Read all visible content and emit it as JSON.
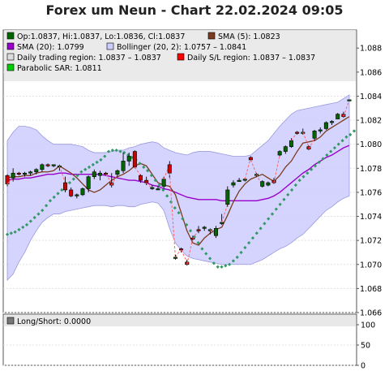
{
  "chart_title": "Forex um Neun - Chart 22.02.2024 09:05",
  "legend": {
    "ohlc": "Op:1.0837, Hi:1.0837, Lo:1.0836, Cl:1.0837",
    "sma5": "SMA (5): 1.0823",
    "sma20": "SMA (20): 1.0799",
    "bollinger": "Bollinger (20, 2): 1.0757 – 1.0841",
    "daily_region": "Daily trading region: 1.0837 – 1.0837",
    "sl_region": "Daily S/L region: 1.0837 – 1.0837",
    "psar": "Parabolic SAR: 1.0811"
  },
  "sub_legend": {
    "longshort": "Long/Short: 0.0000"
  },
  "colors": {
    "band_fill": "#ccccff",
    "band_edge": "#9999dd",
    "sma5": "#7a3b1e",
    "sma20": "#9900cc",
    "psar": "#339966",
    "up": "#006600",
    "down": "#cc0000",
    "legend_bg": "#e8e8e8",
    "daily_region_swatch": "#dddddd",
    "sl_swatch": "#ff0000",
    "psar_swatch": "#00cc00"
  },
  "chart_data": [
    {
      "type": "candlestick",
      "title": "Forex um Neun - Chart 22.02.2024 09:05",
      "ylim": [
        1.066,
        1.0895
      ],
      "yticks": [
        "1.066",
        "1.068",
        "1.070",
        "1.072",
        "1.074",
        "1.076",
        "1.078",
        "1.080",
        "1.082",
        "1.084",
        "1.086",
        "1.088"
      ],
      "candles": [
        {
          "o": 1.0774,
          "h": 1.0775,
          "l": 1.0765,
          "c": 1.0767
        },
        {
          "o": 1.0772,
          "h": 1.078,
          "l": 1.0769,
          "c": 1.0776
        },
        {
          "o": 1.0776,
          "h": 1.0777,
          "l": 1.0774,
          "c": 1.0775
        },
        {
          "o": 1.0775,
          "h": 1.0777,
          "l": 1.0773,
          "c": 1.0776
        },
        {
          "o": 1.0776,
          "h": 1.0778,
          "l": 1.0774,
          "c": 1.0777
        },
        {
          "o": 1.0777,
          "h": 1.078,
          "l": 1.0775,
          "c": 1.0779
        },
        {
          "o": 1.0779,
          "h": 1.0784,
          "l": 1.0777,
          "c": 1.0783
        },
        {
          "o": 1.0783,
          "h": 1.0784,
          "l": 1.0781,
          "c": 1.0782
        },
        {
          "o": 1.0782,
          "h": 1.0783,
          "l": 1.0781,
          "c": 1.0783
        },
        {
          "o": 1.0781,
          "h": 1.0783,
          "l": 1.0778,
          "c": 1.0782
        },
        {
          "o": 1.0768,
          "h": 1.0773,
          "l": 1.076,
          "c": 1.0762
        },
        {
          "o": 1.0762,
          "h": 1.0764,
          "l": 1.0756,
          "c": 1.0757
        },
        {
          "o": 1.0757,
          "h": 1.0759,
          "l": 1.0755,
          "c": 1.0758
        },
        {
          "o": 1.0758,
          "h": 1.0764,
          "l": 1.0757,
          "c": 1.0763
        },
        {
          "o": 1.0763,
          "h": 1.0774,
          "l": 1.076,
          "c": 1.0773
        },
        {
          "o": 1.0773,
          "h": 1.0779,
          "l": 1.0771,
          "c": 1.0777
        },
        {
          "o": 1.0774,
          "h": 1.0778,
          "l": 1.077,
          "c": 1.0776
        },
        {
          "o": 1.0776,
          "h": 1.0777,
          "l": 1.0774,
          "c": 1.0775
        },
        {
          "o": 1.0768,
          "h": 1.0776,
          "l": 1.0764,
          "c": 1.0766
        },
        {
          "o": 1.0775,
          "h": 1.0779,
          "l": 1.0773,
          "c": 1.0778
        },
        {
          "o": 1.0778,
          "h": 1.0793,
          "l": 1.0776,
          "c": 1.0786
        },
        {
          "o": 1.0786,
          "h": 1.0793,
          "l": 1.0782,
          "c": 1.079
        },
        {
          "o": 1.0794,
          "h": 1.0795,
          "l": 1.078,
          "c": 1.0781
        },
        {
          "o": 1.0774,
          "h": 1.0775,
          "l": 1.0768,
          "c": 1.077
        },
        {
          "o": 1.077,
          "h": 1.0773,
          "l": 1.0766,
          "c": 1.0768
        },
        {
          "o": 1.0763,
          "h": 1.0766,
          "l": 1.0762,
          "c": 1.0764
        },
        {
          "o": 1.0763,
          "h": 1.0765,
          "l": 1.0762,
          "c": 1.0763
        },
        {
          "o": 1.0765,
          "h": 1.0773,
          "l": 1.0763,
          "c": 1.0771
        },
        {
          "o": 1.0783,
          "h": 1.0786,
          "l": 1.0772,
          "c": 1.0776
        },
        {
          "o": 1.0706,
          "h": 1.0708,
          "l": 1.0704,
          "c": 1.0706
        },
        {
          "o": 1.0713,
          "h": 1.0714,
          "l": 1.071,
          "c": 1.0712
        },
        {
          "o": 1.0702,
          "h": 1.0704,
          "l": 1.0699,
          "c": 1.07
        },
        {
          "o": 1.0722,
          "h": 1.0724,
          "l": 1.072,
          "c": 1.0721
        },
        {
          "o": 1.0729,
          "h": 1.0732,
          "l": 1.0726,
          "c": 1.0728
        },
        {
          "o": 1.073,
          "h": 1.0732,
          "l": 1.0728,
          "c": 1.0731
        },
        {
          "o": 1.0728,
          "h": 1.073,
          "l": 1.0725,
          "c": 1.0729
        },
        {
          "o": 1.0724,
          "h": 1.0732,
          "l": 1.0722,
          "c": 1.073
        },
        {
          "o": 1.0734,
          "h": 1.0742,
          "l": 1.0733,
          "c": 1.0735
        },
        {
          "o": 1.075,
          "h": 1.0765,
          "l": 1.0748,
          "c": 1.0762
        },
        {
          "o": 1.0766,
          "h": 1.077,
          "l": 1.0764,
          "c": 1.0768
        },
        {
          "o": 1.077,
          "h": 1.0772,
          "l": 1.0769,
          "c": 1.077
        },
        {
          "o": 1.0771,
          "h": 1.0772,
          "l": 1.0769,
          "c": 1.0771
        },
        {
          "o": 1.0789,
          "h": 1.079,
          "l": 1.0786,
          "c": 1.0787
        },
        {
          "o": 1.0775,
          "h": 1.0776,
          "l": 1.0773,
          "c": 1.0775
        },
        {
          "o": 1.0765,
          "h": 1.077,
          "l": 1.0764,
          "c": 1.0769
        },
        {
          "o": 1.0766,
          "h": 1.0769,
          "l": 1.0765,
          "c": 1.0768
        },
        {
          "o": 1.077,
          "h": 1.0772,
          "l": 1.0767,
          "c": 1.0768
        },
        {
          "o": 1.0791,
          "h": 1.0795,
          "l": 1.079,
          "c": 1.0794
        },
        {
          "o": 1.0794,
          "h": 1.0799,
          "l": 1.0792,
          "c": 1.0798
        },
        {
          "o": 1.0798,
          "h": 1.0805,
          "l": 1.0797,
          "c": 1.0803
        },
        {
          "o": 1.081,
          "h": 1.0811,
          "l": 1.0808,
          "c": 1.0809
        },
        {
          "o": 1.081,
          "h": 1.0813,
          "l": 1.0808,
          "c": 1.081
        },
        {
          "o": 1.0798,
          "h": 1.0799,
          "l": 1.0795,
          "c": 1.0796
        },
        {
          "o": 1.0805,
          "h": 1.0812,
          "l": 1.0803,
          "c": 1.0811
        },
        {
          "o": 1.0811,
          "h": 1.0814,
          "l": 1.0809,
          "c": 1.0812
        },
        {
          "o": 1.0813,
          "h": 1.0819,
          "l": 1.0812,
          "c": 1.0818
        },
        {
          "o": 1.0818,
          "h": 1.082,
          "l": 1.0816,
          "c": 1.0819
        },
        {
          "o": 1.0821,
          "h": 1.0826,
          "l": 1.0821,
          "c": 1.0825
        },
        {
          "o": 1.0825,
          "h": 1.0827,
          "l": 1.0822,
          "c": 1.0823
        },
        {
          "o": 1.0837,
          "h": 1.0837,
          "l": 1.0836,
          "c": 1.0837
        }
      ],
      "series": [
        {
          "name": "SMA (5)",
          "values": [
            1.0772,
            1.0773,
            1.0773,
            1.0774,
            1.0774,
            1.0776,
            1.0777,
            1.0777,
            1.0778,
            1.0782,
            1.0779,
            1.0776,
            1.0772,
            1.0767,
            1.0762,
            1.076,
            1.0762,
            1.0766,
            1.077,
            1.0773,
            1.0775,
            1.0778,
            1.0782,
            1.0784,
            1.0782,
            1.0775,
            1.0768,
            1.0766,
            1.0765,
            1.0758,
            1.0743,
            1.0728,
            1.0718,
            1.0716,
            1.0722,
            1.0726,
            1.0729,
            1.0731,
            1.0741,
            1.0752,
            1.0761,
            1.0767,
            1.0771,
            1.0773,
            1.0775,
            1.0772,
            1.0769,
            1.0774,
            1.0781,
            1.0786,
            1.0794,
            1.0801,
            1.0802,
            1.0803,
            1.0806,
            1.0811,
            1.0814,
            1.0817,
            1.082,
            1.0823
          ]
        },
        {
          "name": "SMA (20)",
          "values": [
            1.077,
            1.0771,
            1.0771,
            1.0772,
            1.0772,
            1.0773,
            1.0774,
            1.0775,
            1.0775,
            1.0776,
            1.0776,
            1.0775,
            1.0775,
            1.0775,
            1.0775,
            1.0775,
            1.0775,
            1.0774,
            1.0773,
            1.0772,
            1.0771,
            1.077,
            1.077,
            1.0769,
            1.0768,
            1.0766,
            1.0765,
            1.0763,
            1.0762,
            1.076,
            1.0758,
            1.0756,
            1.0755,
            1.0754,
            1.0754,
            1.0754,
            1.0754,
            1.0753,
            1.0753,
            1.0753,
            1.0753,
            1.0753,
            1.0753,
            1.0753,
            1.0754,
            1.0755,
            1.0757,
            1.076,
            1.0764,
            1.0768,
            1.0772,
            1.0776,
            1.0779,
            1.0783,
            1.0786,
            1.0789,
            1.0791,
            1.0794,
            1.0797,
            1.0799
          ]
        },
        {
          "name": "Bollinger (20, 2) upper",
          "values": [
            1.0803,
            1.081,
            1.0815,
            1.0815,
            1.0814,
            1.0812,
            1.0807,
            1.0803,
            1.08,
            1.08,
            1.08,
            1.08,
            1.0799,
            1.0798,
            1.0795,
            1.0793,
            1.0793,
            1.0793,
            1.0794,
            1.0795,
            1.0795,
            1.0797,
            1.0798,
            1.08,
            1.0801,
            1.0802,
            1.0801,
            1.0797,
            1.0795,
            1.0793,
            1.0792,
            1.0791,
            1.0793,
            1.0794,
            1.0794,
            1.0794,
            1.0793,
            1.0792,
            1.0791,
            1.079,
            1.079,
            1.079,
            1.0791,
            1.0795,
            1.0799,
            1.0803,
            1.0809,
            1.0815,
            1.082,
            1.0825,
            1.0828,
            1.0829,
            1.083,
            1.0831,
            1.0832,
            1.0833,
            1.0834,
            1.0835,
            1.0838,
            1.0841
          ]
        },
        {
          "name": "Bollinger (20, 2) lower",
          "values": [
            1.0687,
            1.0692,
            1.0702,
            1.071,
            1.072,
            1.0728,
            1.0735,
            1.0739,
            1.0742,
            1.0742,
            1.0744,
            1.0745,
            1.0746,
            1.0747,
            1.0748,
            1.0749,
            1.0749,
            1.0749,
            1.0748,
            1.0749,
            1.0749,
            1.0748,
            1.0748,
            1.075,
            1.0751,
            1.0752,
            1.0751,
            1.0745,
            1.073,
            1.0718,
            1.0712,
            1.0707,
            1.0705,
            1.0704,
            1.0703,
            1.0702,
            1.0701,
            1.07,
            1.07,
            1.07,
            1.07,
            1.07,
            1.07,
            1.0702,
            1.0704,
            1.0707,
            1.071,
            1.0713,
            1.0715,
            1.0718,
            1.0722,
            1.0725,
            1.073,
            1.0735,
            1.074,
            1.0745,
            1.0748,
            1.0752,
            1.0755,
            1.0757
          ]
        },
        {
          "name": "Parabolic SAR",
          "values": [
            1.0725,
            1.0726,
            1.0727,
            1.0729,
            1.0731,
            1.0733,
            1.0736,
            1.0739,
            1.0742,
            1.0745,
            1.0749,
            1.0753,
            1.0756,
            1.0759,
            1.0762,
            1.0765,
            1.0768,
            1.0771,
            1.0774,
            1.0777,
            1.0779,
            1.0781,
            1.0783,
            1.0785,
            1.0787,
            1.079,
            1.0794,
            1.0795,
            1.0795,
            1.0794,
            1.0793,
            1.0791,
            1.0789,
            1.0787,
            1.0784,
            1.0781,
            1.0778,
            1.0774,
            1.077,
            1.0766,
            1.0762,
            1.0757,
            1.0752,
            1.0747,
            1.0743,
            1.0738,
            1.0733,
            1.0728,
            1.0723,
            1.0718,
            1.0713,
            1.0709,
            1.0705,
            1.0701,
            1.0698,
            1.0698,
            1.0699,
            1.07,
            1.0703,
            1.0706,
            1.071,
            1.0714,
            1.0718,
            1.0722,
            1.0726,
            1.073,
            1.0734,
            1.0738,
            1.0742,
            1.0746,
            1.075,
            1.0754,
            1.0758,
            1.0762,
            1.0766,
            1.077,
            1.0773,
            1.0776,
            1.0779,
            1.0782,
            1.0785,
            1.0788,
            1.0791,
            1.0794,
            1.0797,
            1.08,
            1.0803,
            1.0806,
            1.0808,
            1.0811
          ]
        }
      ],
      "psar_start_index": -28.5,
      "psar_step": 0.6666
    },
    {
      "type": "line",
      "title": "Long/Short: 0.0000",
      "ylim": [
        0,
        100
      ],
      "yticks": [
        "0",
        "50",
        "100"
      ],
      "values": []
    }
  ]
}
